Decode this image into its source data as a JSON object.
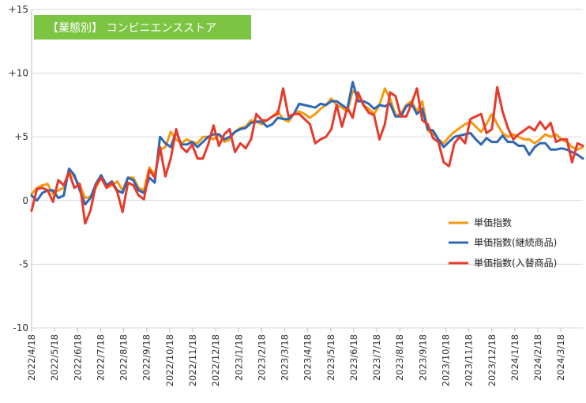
{
  "chart_data": {
    "type": "line",
    "title": "【業態別】 コンビニエンスストア",
    "title_bg_color": "#7cc542",
    "ylim": [
      -10,
      15
    ],
    "y_ticks": [
      {
        "value": 15,
        "label": "+15"
      },
      {
        "value": 10,
        "label": "+10"
      },
      {
        "value": 5,
        "label": "+5"
      },
      {
        "value": 0,
        "label": "0"
      },
      {
        "value": -5,
        "label": "-5"
      },
      {
        "value": -10,
        "label": "-10"
      }
    ],
    "x_tick_labels": [
      "2022/4/18",
      "2022/5/18",
      "2022/6/18",
      "2022/7/18",
      "2022/8/18",
      "2022/9/18",
      "2022/10/18",
      "2022/11/18",
      "2022/12/18",
      "2023/1/18",
      "2023/2/18",
      "2023/3/18",
      "2023/4/18",
      "2023/5/18",
      "2023/6/18",
      "2023/7/18",
      "2023/8/18",
      "2023/9/18",
      "2023/10/18",
      "2023/11/18",
      "2023/12/18",
      "2024/1/18",
      "2024/2/18",
      "2024/3/18"
    ],
    "points_per_month": 4.3,
    "grid": "horizontal",
    "legend_position": "right",
    "series": [
      {
        "name": "単価指数",
        "color": "#f59a0f",
        "values": [
          0.5,
          1.0,
          1.2,
          1.3,
          0.5,
          0.8,
          1.0,
          2.4,
          1.8,
          1.2,
          0.2,
          0.3,
          1.0,
          1.8,
          1.0,
          1.2,
          1.5,
          0.8,
          1.8,
          1.8,
          1.0,
          0.8,
          2.6,
          2.0,
          4.0,
          4.2,
          5.4,
          4.8,
          4.5,
          4.8,
          4.6,
          4.5,
          5.0,
          5.0,
          4.8,
          5.2,
          4.6,
          4.8,
          5.4,
          5.7,
          5.8,
          6.3,
          6.2,
          6.0,
          6.3,
          6.6,
          7.0,
          6.4,
          6.2,
          6.8,
          7.0,
          6.8,
          6.5,
          6.8,
          7.2,
          7.5,
          8.0,
          7.5,
          7.3,
          7.0,
          8.6,
          8.3,
          7.5,
          7.2,
          6.8,
          7.5,
          8.8,
          8.0,
          6.7,
          6.8,
          7.5,
          7.8,
          7.0,
          7.8,
          5.5,
          5.3,
          4.8,
          4.5,
          5.0,
          5.4,
          5.7,
          6.0,
          6.2,
          5.8,
          5.4,
          6.0,
          6.8,
          6.0,
          5.3,
          5.0,
          5.2,
          5.0,
          4.8,
          4.8,
          4.5,
          4.8,
          5.2,
          5.0,
          5.2,
          4.8,
          4.6,
          4.2,
          4.0,
          4.2
        ]
      },
      {
        "name": "単価指数(継続商品)",
        "color": "#2e67b4",
        "values": [
          0.4,
          0.0,
          0.6,
          0.8,
          0.8,
          0.2,
          0.4,
          2.5,
          2.0,
          0.8,
          -0.3,
          0.2,
          1.3,
          2.0,
          1.2,
          1.5,
          0.8,
          0.6,
          1.8,
          1.6,
          0.8,
          0.6,
          1.8,
          1.4,
          5.0,
          4.5,
          4.2,
          5.4,
          4.4,
          4.4,
          4.6,
          4.2,
          4.6,
          5.0,
          5.2,
          5.2,
          4.8,
          5.0,
          5.4,
          5.6,
          5.7,
          6.1,
          6.2,
          6.2,
          5.8,
          6.0,
          6.5,
          6.4,
          6.4,
          6.8,
          7.6,
          7.5,
          7.4,
          7.3,
          7.6,
          7.5,
          7.8,
          7.8,
          7.5,
          7.2,
          9.3,
          7.8,
          7.8,
          7.6,
          7.2,
          7.5,
          7.4,
          7.6,
          6.6,
          6.6,
          7.4,
          7.6,
          6.8,
          7.2,
          5.6,
          5.5,
          4.8,
          4.2,
          4.6,
          5.0,
          5.1,
          5.2,
          5.3,
          4.8,
          4.4,
          4.9,
          4.6,
          4.6,
          5.1,
          4.6,
          4.6,
          4.3,
          4.3,
          3.6,
          4.2,
          4.5,
          4.5,
          4.0,
          4.0,
          4.1,
          4.0,
          3.8,
          3.6,
          3.3
        ]
      },
      {
        "name": "単価指数(入替商品)",
        "color": "#e63a2c",
        "values": [
          -0.8,
          0.9,
          1.0,
          0.8,
          -0.1,
          1.6,
          1.2,
          2.2,
          1.0,
          1.3,
          -1.8,
          -0.8,
          1.2,
          1.8,
          1.0,
          1.4,
          0.7,
          -0.9,
          1.4,
          1.2,
          0.4,
          0.1,
          2.4,
          1.8,
          4.2,
          1.9,
          3.3,
          5.6,
          4.2,
          3.8,
          4.4,
          3.3,
          3.3,
          4.4,
          5.9,
          4.3,
          5.2,
          5.6,
          3.8,
          4.5,
          4.1,
          4.8,
          6.8,
          6.3,
          6.3,
          6.6,
          6.8,
          8.8,
          6.6,
          6.8,
          6.8,
          6.4,
          6.0,
          4.5,
          4.8,
          5.0,
          5.6,
          7.5,
          5.8,
          7.3,
          6.5,
          8.5,
          7.5,
          6.9,
          6.7,
          4.8,
          6.0,
          8.5,
          8.2,
          6.6,
          6.6,
          7.6,
          8.8,
          6.3,
          6.0,
          4.9,
          4.6,
          3.0,
          2.7,
          4.5,
          5.0,
          4.5,
          6.4,
          6.6,
          6.8,
          5.3,
          5.6,
          8.9,
          7.0,
          5.7,
          4.8,
          5.2,
          5.5,
          5.8,
          5.5,
          6.2,
          5.6,
          6.1,
          4.6,
          4.8,
          4.8,
          3.0,
          4.5,
          4.3
        ]
      }
    ]
  }
}
